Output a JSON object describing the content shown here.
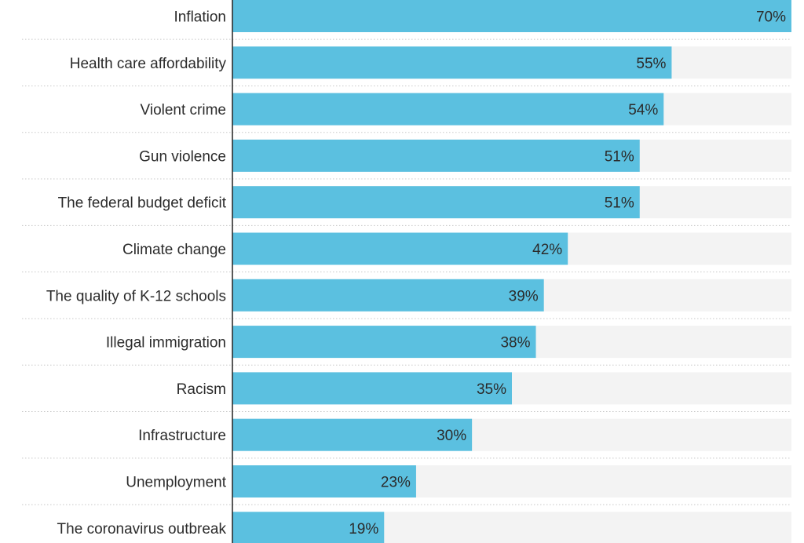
{
  "chart_data": {
    "type": "bar",
    "orientation": "horizontal",
    "title": "",
    "xlabel": "",
    "ylabel": "",
    "xlim": [
      0,
      70
    ],
    "value_suffix": "%",
    "grid": false,
    "categories": [
      "Inflation",
      "Health care affordability",
      "Violent crime",
      "Gun violence",
      "The federal budget deficit",
      "Climate change",
      "The quality of K-12 schools",
      "Illegal immigration",
      "Racism",
      "Infrastructure",
      "Unemployment",
      "The coronavirus outbreak"
    ],
    "values": [
      70,
      55,
      54,
      51,
      51,
      42,
      39,
      38,
      35,
      30,
      23,
      19
    ],
    "value_labels": [
      "70%",
      "55%",
      "54%",
      "51%",
      "51%",
      "42%",
      "39%",
      "38%",
      "35%",
      "30%",
      "23%",
      "19%"
    ],
    "colors": {
      "bar": "#5bc0e0",
      "track": "#f3f3f3",
      "axis": "#222222",
      "divider": "#c8c8c8",
      "text": "#2b2b2b"
    }
  }
}
